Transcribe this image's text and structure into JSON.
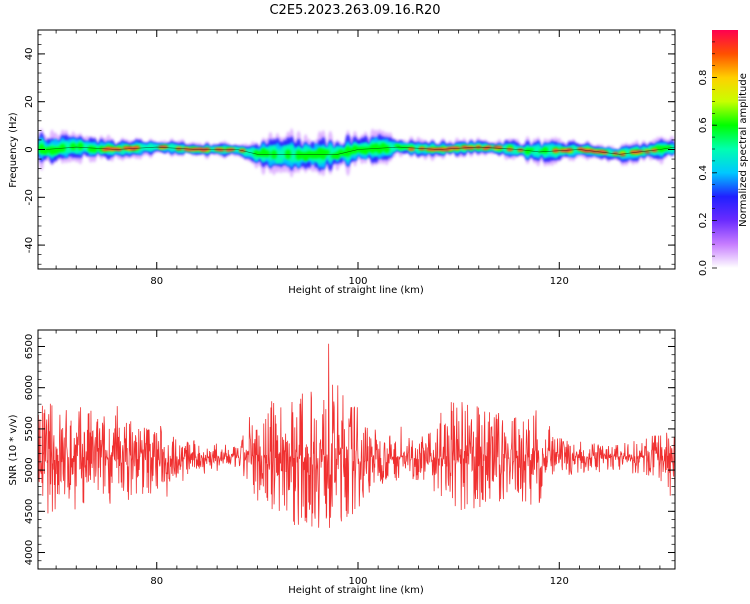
{
  "title": "C2E5.2023.263.09.16.R20",
  "chart_data": [
    {
      "type": "heatmap",
      "xlabel": "Height of straight line (km)",
      "ylabel": "Frequency (Hz)",
      "xlim": [
        68.2,
        131.5
      ],
      "ylim": [
        -50,
        50
      ],
      "xticks": [
        80,
        100,
        120
      ],
      "yticks": [
        -40,
        -20,
        0,
        20,
        40
      ],
      "colorbar": {
        "label": "Normalized spectral amplitude",
        "range": [
          0,
          1
        ],
        "ticks": [
          "0.0",
          "0.2",
          "0.4",
          "0.6",
          "0.8"
        ],
        "colors": [
          "#ffffff",
          "#c77dff",
          "#6b2cff",
          "#2020ff",
          "#00c8ff",
          "#00ffb0",
          "#00ff00",
          "#c8ff00",
          "#ffd000",
          "#ff5000",
          "#ff0050"
        ]
      },
      "band": {
        "center_hz": [
          [
            69,
            0
          ],
          [
            72,
            1
          ],
          [
            76,
            0
          ],
          [
            80,
            1
          ],
          [
            84,
            0
          ],
          [
            88,
            0
          ],
          [
            90,
            -2
          ],
          [
            94,
            -2
          ],
          [
            98,
            -2
          ],
          [
            100,
            0
          ],
          [
            104,
            1
          ],
          [
            108,
            0
          ],
          [
            112,
            1
          ],
          [
            116,
            0
          ],
          [
            118,
            -1
          ],
          [
            122,
            0
          ],
          [
            126,
            -2
          ],
          [
            130,
            0
          ],
          [
            131.5,
            1
          ]
        ],
        "width_hz": [
          [
            69,
            7
          ],
          [
            76,
            4
          ],
          [
            82,
            3
          ],
          [
            88,
            3
          ],
          [
            92,
            8
          ],
          [
            96,
            8
          ],
          [
            100,
            7
          ],
          [
            106,
            4
          ],
          [
            112,
            3
          ],
          [
            118,
            5
          ],
          [
            124,
            3
          ],
          [
            131.5,
            5
          ]
        ]
      }
    },
    {
      "type": "line",
      "xlabel": "Height of straight line (km)",
      "ylabel": "SNR (10 * v/v)",
      "xlim": [
        68.2,
        131.5
      ],
      "ylim": [
        3800,
        6700
      ],
      "xticks": [
        80,
        100,
        120
      ],
      "yticks": [
        4000,
        4500,
        5000,
        5500,
        6000,
        6500
      ],
      "series": [
        {
          "color": "#f03030",
          "center": 5150,
          "amplitude_profile": [
            [
              68.2,
              550
            ],
            [
              72,
              500
            ],
            [
              76,
              420
            ],
            [
              80,
              350
            ],
            [
              82,
              200
            ],
            [
              84,
              160
            ],
            [
              87,
              120
            ],
            [
              88,
              100
            ],
            [
              89,
              300
            ],
            [
              92,
              600
            ],
            [
              95,
              650
            ],
            [
              98,
              700
            ],
            [
              100,
              500
            ],
            [
              102,
              250
            ],
            [
              105,
              200
            ],
            [
              107,
              220
            ],
            [
              109,
              550
            ],
            [
              112,
              500
            ],
            [
              115,
              420
            ],
            [
              118,
              450
            ],
            [
              119,
              200
            ],
            [
              122,
              150
            ],
            [
              126,
              130
            ],
            [
              129,
              200
            ],
            [
              131.5,
              250
            ]
          ]
        }
      ]
    }
  ]
}
